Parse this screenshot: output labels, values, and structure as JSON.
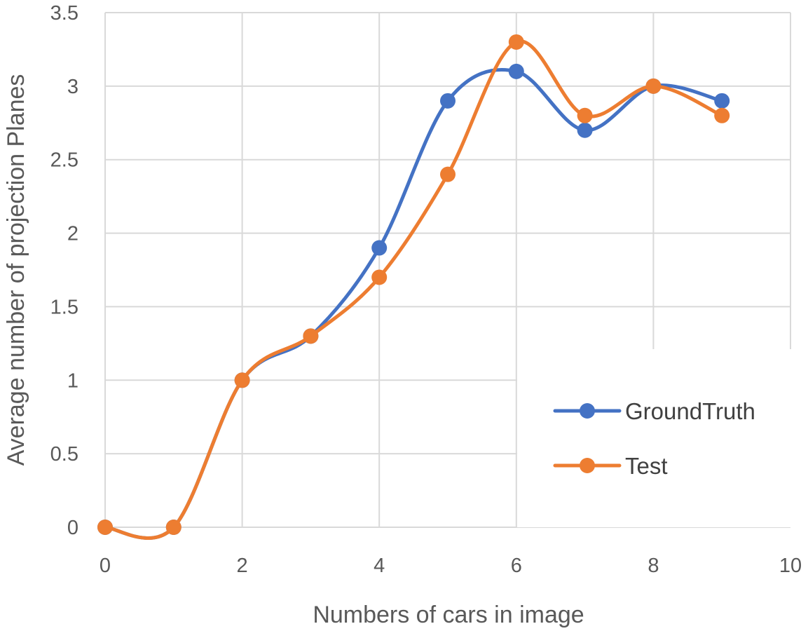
{
  "chart_data": {
    "type": "line",
    "title": "",
    "xlabel": "Numbers of cars in image",
    "ylabel": "Average number of projection Planes",
    "xlim": [
      0,
      10
    ],
    "ylim": [
      0,
      3.5
    ],
    "x_ticks": [
      "0",
      "2",
      "4",
      "6",
      "8",
      "10"
    ],
    "y_ticks": [
      "0",
      "0.5",
      "1",
      "1.5",
      "2",
      "2.5",
      "3",
      "3.5"
    ],
    "grid": true,
    "smooth": true,
    "legend_position": "bottom-right",
    "series": [
      {
        "name": "GroundTruth",
        "color": "#4472C4",
        "x": [
          0,
          1,
          2,
          3,
          4,
          5,
          6,
          7,
          8,
          9
        ],
        "y": [
          0,
          0,
          1,
          1.3,
          1.9,
          2.9,
          3.1,
          2.7,
          3.0,
          2.9
        ]
      },
      {
        "name": "Test",
        "color": "#ED7D31",
        "x": [
          0,
          1,
          2,
          3,
          4,
          5,
          6,
          7,
          8,
          9
        ],
        "y": [
          0,
          0,
          1,
          1.3,
          1.7,
          2.4,
          3.3,
          2.8,
          3.0,
          2.8
        ]
      }
    ]
  }
}
